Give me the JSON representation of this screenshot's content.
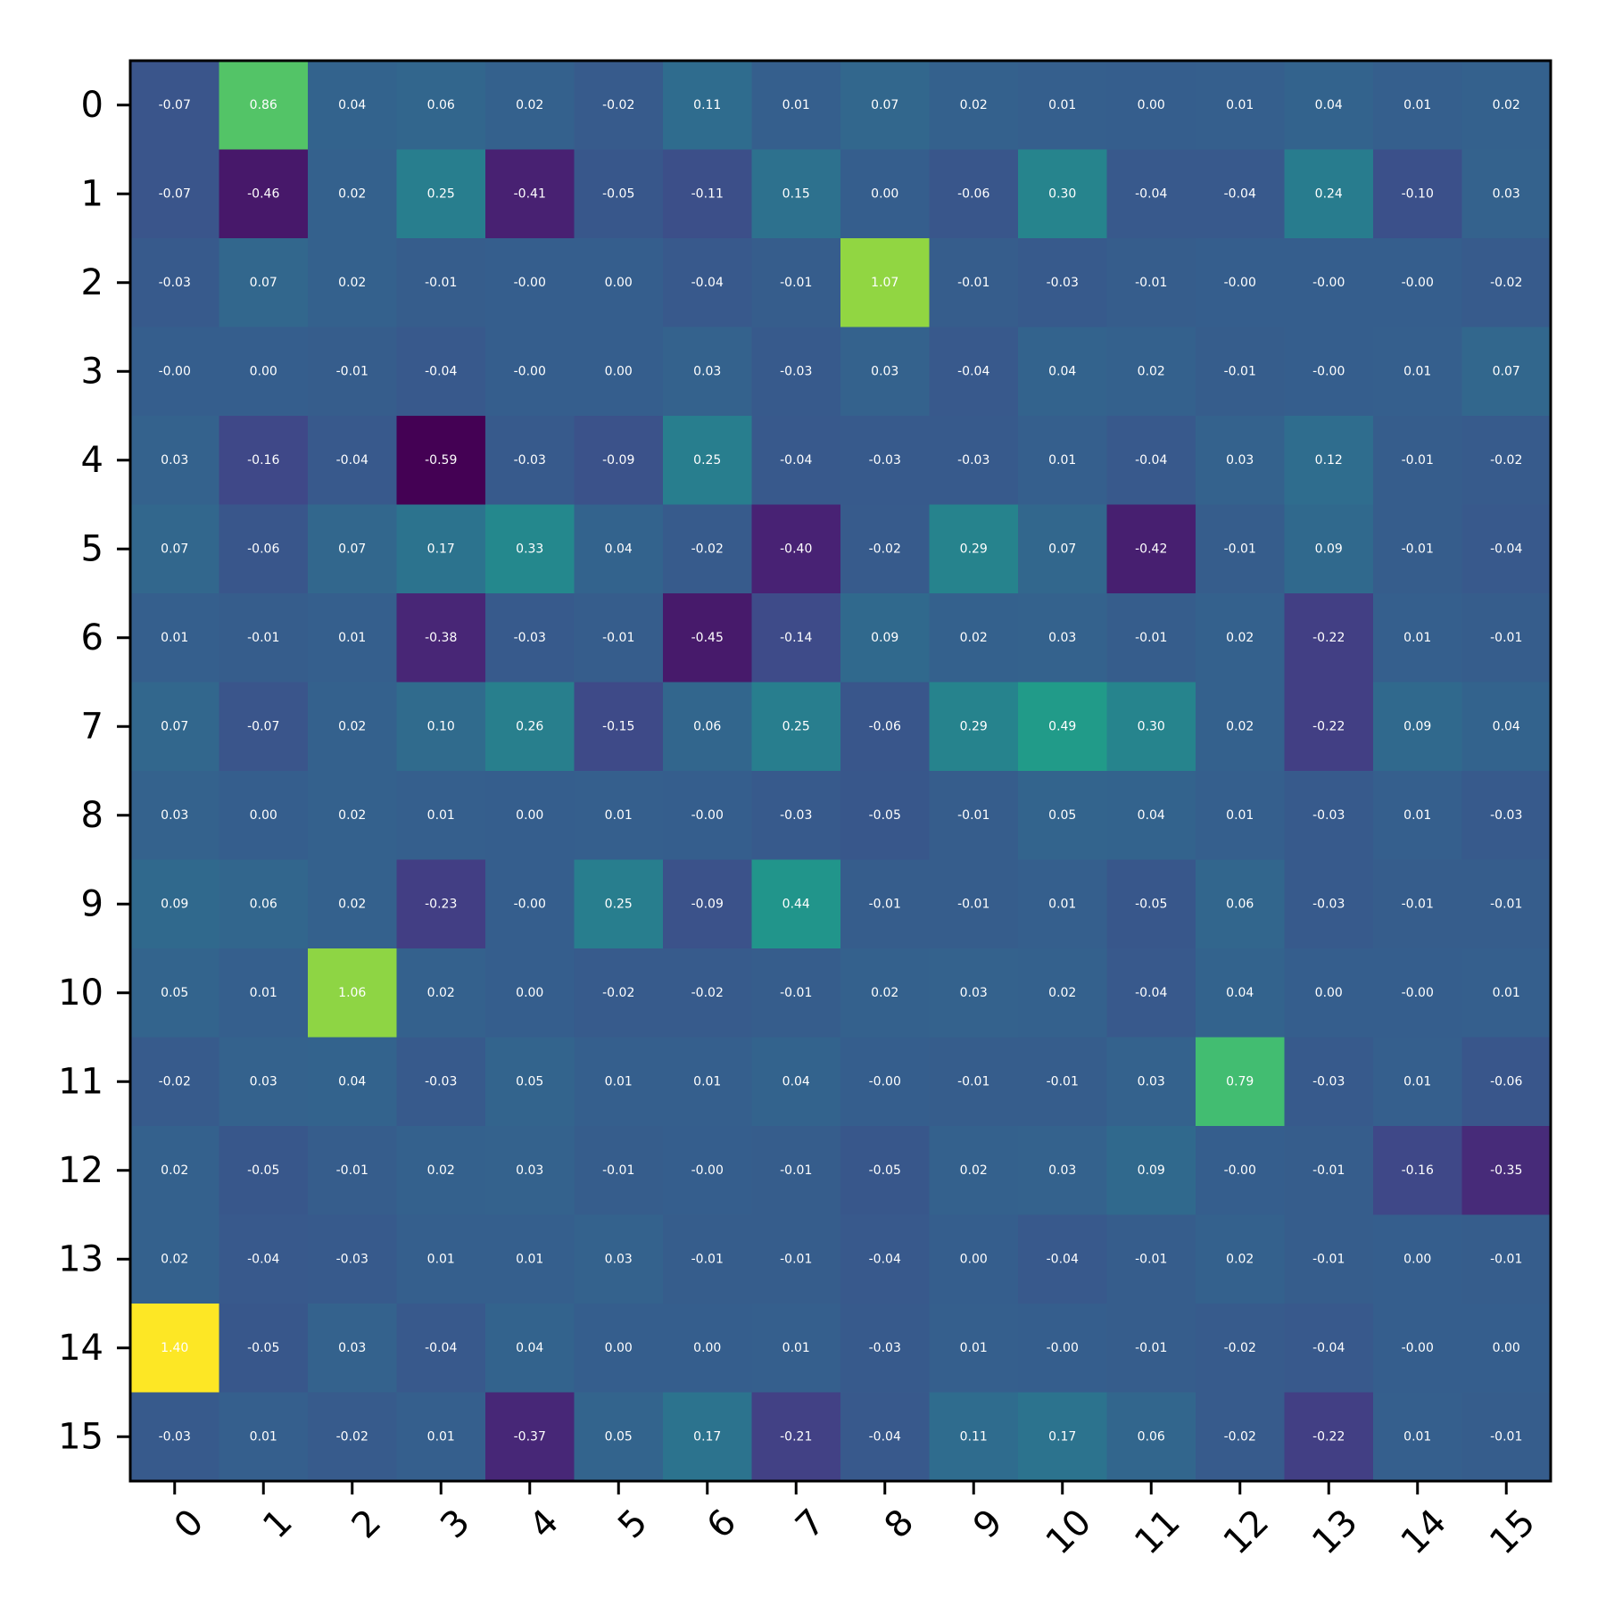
{
  "chart_data": {
    "type": "heatmap",
    "title": "",
    "xlabel": "",
    "ylabel": "",
    "x_categories": [
      "0",
      "1",
      "2",
      "3",
      "4",
      "5",
      "6",
      "7",
      "8",
      "9",
      "10",
      "11",
      "12",
      "13",
      "14",
      "15"
    ],
    "y_categories": [
      "0",
      "1",
      "2",
      "3",
      "4",
      "5",
      "6",
      "7",
      "8",
      "9",
      "10",
      "11",
      "12",
      "13",
      "14",
      "15"
    ],
    "colormap": "viridis",
    "vmin": -0.59,
    "vmax": 1.4,
    "matrix": [
      [
        "-0.07",
        "0.86",
        "0.04",
        "0.06",
        "0.02",
        "-0.02",
        "0.11",
        "0.01",
        "0.07",
        "0.02",
        "0.01",
        "0.00",
        "0.01",
        "0.04",
        "0.01",
        "0.02"
      ],
      [
        "-0.07",
        "-0.46",
        "0.02",
        "0.25",
        "-0.41",
        "-0.05",
        "-0.11",
        "0.15",
        "0.00",
        "-0.06",
        "0.30",
        "-0.04",
        "-0.04",
        "0.24",
        "-0.10",
        "0.03"
      ],
      [
        "-0.03",
        "0.07",
        "0.02",
        "-0.01",
        "-0.00",
        "0.00",
        "-0.04",
        "-0.01",
        "1.07",
        "-0.01",
        "-0.03",
        "-0.01",
        "-0.00",
        "-0.00",
        "-0.00",
        "-0.02"
      ],
      [
        "-0.00",
        "0.00",
        "-0.01",
        "-0.04",
        "-0.00",
        "0.00",
        "0.03",
        "-0.03",
        "0.03",
        "-0.04",
        "0.04",
        "0.02",
        "-0.01",
        "-0.00",
        "0.01",
        "0.07"
      ],
      [
        "0.03",
        "-0.16",
        "-0.04",
        "-0.59",
        "-0.03",
        "-0.09",
        "0.25",
        "-0.04",
        "-0.03",
        "-0.03",
        "0.01",
        "-0.04",
        "0.03",
        "0.12",
        "-0.01",
        "-0.02"
      ],
      [
        "0.07",
        "-0.06",
        "0.07",
        "0.17",
        "0.33",
        "0.04",
        "-0.02",
        "-0.40",
        "-0.02",
        "0.29",
        "0.07",
        "-0.42",
        "-0.01",
        "0.09",
        "-0.01",
        "-0.04"
      ],
      [
        "0.01",
        "-0.01",
        "0.01",
        "-0.38",
        "-0.03",
        "-0.01",
        "-0.45",
        "-0.14",
        "0.09",
        "0.02",
        "0.03",
        "-0.01",
        "0.02",
        "-0.22",
        "0.01",
        "-0.01"
      ],
      [
        "0.07",
        "-0.07",
        "0.02",
        "0.10",
        "0.26",
        "-0.15",
        "0.06",
        "0.25",
        "-0.06",
        "0.29",
        "0.49",
        "0.30",
        "0.02",
        "-0.22",
        "0.09",
        "0.04"
      ],
      [
        "0.03",
        "0.00",
        "0.02",
        "0.01",
        "0.00",
        "0.01",
        "-0.00",
        "-0.03",
        "-0.05",
        "-0.01",
        "0.05",
        "0.04",
        "0.01",
        "-0.03",
        "0.01",
        "-0.03"
      ],
      [
        "0.09",
        "0.06",
        "0.02",
        "-0.23",
        "-0.00",
        "0.25",
        "-0.09",
        "0.44",
        "-0.01",
        "-0.01",
        "0.01",
        "-0.05",
        "0.06",
        "-0.03",
        "-0.01",
        "-0.01"
      ],
      [
        "0.05",
        "0.01",
        "1.06",
        "0.02",
        "0.00",
        "-0.02",
        "-0.02",
        "-0.01",
        "0.02",
        "0.03",
        "0.02",
        "-0.04",
        "0.04",
        "0.00",
        "-0.00",
        "0.01"
      ],
      [
        "-0.02",
        "0.03",
        "0.04",
        "-0.03",
        "0.05",
        "0.01",
        "0.01",
        "0.04",
        "-0.00",
        "-0.01",
        "-0.01",
        "0.03",
        "0.79",
        "-0.03",
        "0.01",
        "-0.06"
      ],
      [
        "0.02",
        "-0.05",
        "-0.01",
        "0.02",
        "0.03",
        "-0.01",
        "-0.00",
        "-0.01",
        "-0.05",
        "0.02",
        "0.03",
        "0.09",
        "-0.00",
        "-0.01",
        "-0.16",
        "-0.35"
      ],
      [
        "0.02",
        "-0.04",
        "-0.03",
        "0.01",
        "0.01",
        "0.03",
        "-0.01",
        "-0.01",
        "-0.04",
        "0.00",
        "-0.04",
        "-0.01",
        "0.02",
        "-0.01",
        "0.00",
        "-0.01"
      ],
      [
        "1.40",
        "-0.05",
        "0.03",
        "-0.04",
        "0.04",
        "0.00",
        "0.00",
        "0.01",
        "-0.03",
        "0.01",
        "-0.00",
        "-0.01",
        "-0.02",
        "-0.04",
        "-0.00",
        "0.00"
      ],
      [
        "-0.03",
        "0.01",
        "-0.02",
        "0.01",
        "-0.37",
        "0.05",
        "0.17",
        "-0.21",
        "-0.04",
        "0.11",
        "0.17",
        "0.06",
        "-0.02",
        "-0.22",
        "0.01",
        "-0.01"
      ]
    ]
  }
}
